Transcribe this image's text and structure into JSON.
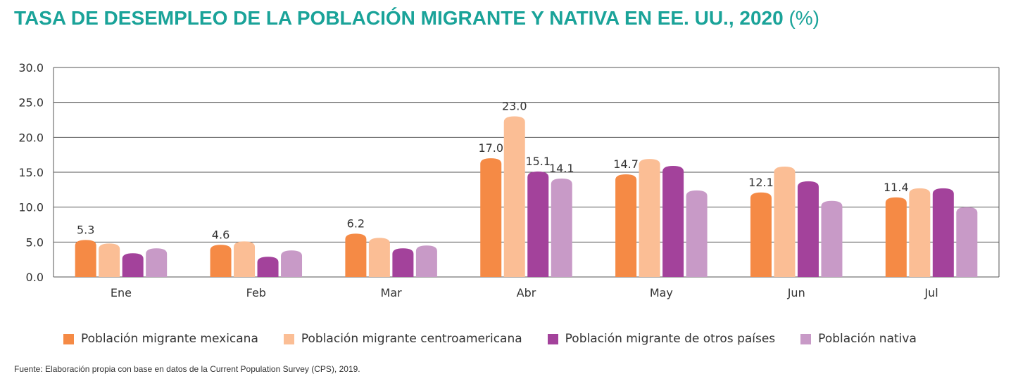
{
  "title": "TASA DE DESEMPLEO DE LA POBLACIÓN MIGRANTE Y NATIVA EN EE. UU., 2020",
  "title_unit": "(%)",
  "source": "Fuente: Elaboración propia con base en datos de la Current Population Survey (CPS), 2019.",
  "colors": {
    "title": "#1aa399",
    "grid": "#555555"
  },
  "chart_data": {
    "type": "bar",
    "categories": [
      "Ene",
      "Feb",
      "Mar",
      "Abr",
      "May",
      "Jun",
      "Jul"
    ],
    "ylim": [
      0,
      30
    ],
    "yticks": [
      "0.0",
      "5.0",
      "10.0",
      "15.0",
      "20.0",
      "25.0",
      "30.0"
    ],
    "grid": true,
    "legend_position": "bottom",
    "series": [
      {
        "name": "Población migrante mexicana",
        "color": "#f58a45",
        "values": [
          5.3,
          4.6,
          6.2,
          17.0,
          14.7,
          12.1,
          11.4
        ],
        "labels": [
          "5.3",
          "4.6",
          "6.2",
          "17.0",
          "14.7",
          "12.1",
          "11.4"
        ]
      },
      {
        "name": "Población migrante centroamericana",
        "color": "#fbbe95",
        "values": [
          4.8,
          5.1,
          5.6,
          23.0,
          16.9,
          15.8,
          12.7
        ],
        "labels": [
          "",
          "",
          "",
          "23.0",
          "",
          "",
          ""
        ]
      },
      {
        "name": "Población migrante de otros países",
        "color": "#a3429b",
        "values": [
          3.4,
          2.9,
          4.1,
          15.1,
          15.9,
          13.7,
          12.7
        ],
        "labels": [
          "",
          "",
          "",
          "15.1",
          "",
          "",
          ""
        ]
      },
      {
        "name": "Población nativa",
        "color": "#c89ac7",
        "values": [
          4.1,
          3.8,
          4.5,
          14.1,
          12.4,
          10.9,
          10.0
        ],
        "labels": [
          "",
          "",
          "",
          "14.1",
          "",
          "",
          ""
        ]
      }
    ]
  }
}
